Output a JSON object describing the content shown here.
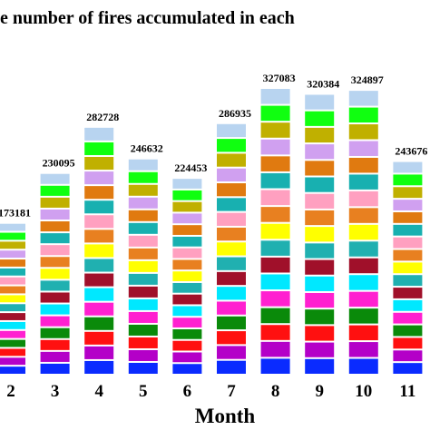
{
  "chart_data": {
    "type": "bar",
    "title": "e number of fires accumulated in each",
    "x_label": "Month",
    "categories": [
      "2",
      "3",
      "4",
      "5",
      "6",
      "7",
      "8",
      "9",
      "10",
      "11"
    ],
    "values": [
      173181,
      230095,
      282728,
      246632,
      224453,
      286935,
      327083,
      320384,
      324897,
      243676
    ],
    "colors": [
      "#0a2bff",
      "#b400c8",
      "#ff1010",
      "#0a8a0a",
      "#ff20d0",
      "#00e8ff",
      "#a0102a",
      "#20b0b0",
      "#ffff00",
      "#e88020",
      "#ffa0c0",
      "#18b0b0",
      "#e07a10",
      "#d0a0f0",
      "#c0b000",
      "#10ff10",
      "#b8d4f0"
    ]
  }
}
